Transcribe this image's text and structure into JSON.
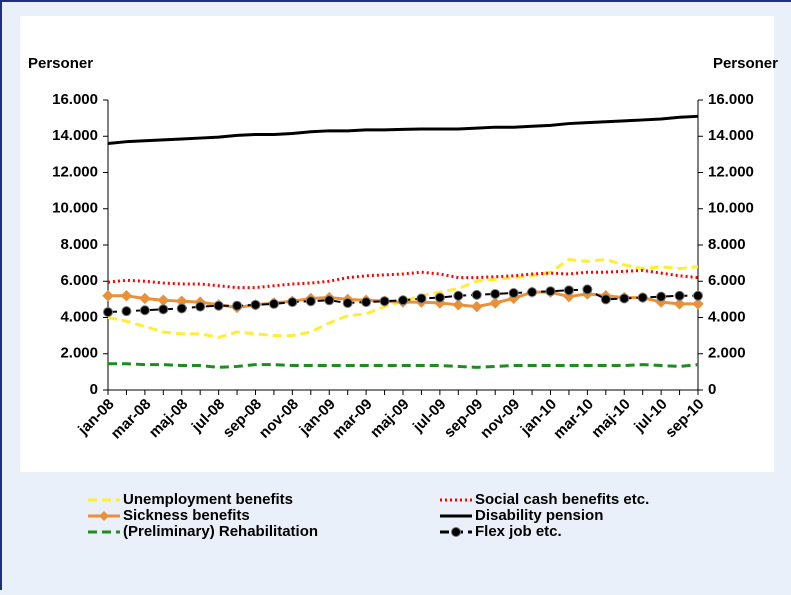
{
  "chart_data": {
    "type": "line",
    "y_label": "Personer",
    "y2_label": "Personer",
    "categories": [
      "jan-08",
      null,
      "mar-08",
      null,
      "maj-08",
      null,
      "jul-08",
      null,
      "sep-08",
      null,
      "nov-08",
      null,
      "jan-09",
      null,
      "mar-09",
      null,
      "maj-09",
      null,
      "jul-09",
      null,
      "sep-09",
      null,
      "nov-09",
      null,
      "jan-10",
      null,
      "mar-10",
      null,
      "maj-10",
      null,
      "jul-10",
      null,
      "sep-10"
    ],
    "ylim": [
      0,
      16000
    ],
    "yticks": [
      0,
      {
        "value": 2000,
        "label": "2.000"
      },
      {
        "value": 4000,
        "label": "4.000"
      },
      {
        "value": 6000,
        "label": "6.000"
      },
      {
        "value": 8000,
        "label": "8.000"
      },
      {
        "value": 10000,
        "label": "10.000"
      },
      {
        "value": 12000,
        "label": "12.000"
      },
      {
        "value": 14000,
        "label": "14.000"
      },
      {
        "value": 16000,
        "label": "16.000"
      }
    ],
    "y2lim": [
      0,
      16000
    ],
    "y2ticks": [
      0,
      {
        "value": 2000,
        "label": "2.000"
      },
      {
        "value": 4000,
        "label": "4.000"
      },
      {
        "value": 6000,
        "label": "6.000"
      },
      {
        "value": 8000,
        "label": "8.000"
      },
      {
        "value": 10000,
        "label": "10.000"
      },
      {
        "value": 12000,
        "label": "12.000"
      },
      {
        "value": 14000,
        "label": "14.000"
      },
      {
        "value": 16000,
        "label": "16.000"
      }
    ],
    "grid": false,
    "legend": "bottom",
    "series": [
      {
        "name": "Unemployment benefits",
        "color": "#ffee33",
        "style": "dashed",
        "marker": "none",
        "values": [
          4000,
          3800,
          3500,
          3200,
          3100,
          3100,
          2900,
          3200,
          3100,
          3000,
          3000,
          3200,
          3700,
          4100,
          4200,
          4600,
          4900,
          5200,
          5400,
          5600,
          6000,
          6100,
          6200,
          6300,
          6500,
          7200,
          7100,
          7200,
          6900,
          6700,
          6800,
          6700,
          6800
        ]
      },
      {
        "name": "Social cash benefits etc.",
        "color": "#ff0000",
        "style": "dotted",
        "marker": "none",
        "values": [
          5950,
          6050,
          6000,
          5900,
          5850,
          5850,
          5750,
          5650,
          5650,
          5750,
          5850,
          5900,
          6000,
          6200,
          6300,
          6350,
          6400,
          6500,
          6400,
          6200,
          6200,
          6250,
          6300,
          6400,
          6450,
          6400,
          6500,
          6500,
          6550,
          6600,
          6450,
          6300,
          6200
        ]
      },
      {
        "name": "Sickness benefits",
        "color": "#e8913a",
        "style": "solid",
        "marker": "diamond",
        "values": [
          5200,
          5200,
          5050,
          4950,
          4900,
          4850,
          4700,
          4550,
          4700,
          4800,
          4900,
          5050,
          5100,
          5000,
          4950,
          4900,
          4850,
          4850,
          4800,
          4700,
          4600,
          4800,
          5050,
          5400,
          5400,
          5150,
          5300,
          5200,
          5100,
          5100,
          4850,
          4750,
          4750
        ]
      },
      {
        "name": "Disability pension",
        "color": "#000000",
        "style": "solid",
        "marker": "none",
        "values": [
          13600,
          13700,
          13750,
          13800,
          13850,
          13900,
          13950,
          14050,
          14100,
          14100,
          14150,
          14250,
          14300,
          14300,
          14350,
          14350,
          14380,
          14400,
          14400,
          14400,
          14450,
          14500,
          14500,
          14550,
          14600,
          14700,
          14750,
          14800,
          14850,
          14900,
          14950,
          15050,
          15100
        ]
      },
      {
        "name": "(Preliminary) Rehabilitation",
        "color": "#1e8c1e",
        "style": "dashed",
        "marker": "none",
        "values": [
          1450,
          1450,
          1400,
          1400,
          1350,
          1350,
          1250,
          1300,
          1400,
          1400,
          1350,
          1350,
          1350,
          1350,
          1350,
          1350,
          1350,
          1350,
          1350,
          1300,
          1250,
          1300,
          1350,
          1350,
          1350,
          1350,
          1350,
          1350,
          1350,
          1400,
          1350,
          1300,
          1400
        ]
      },
      {
        "name": "Flex job etc.",
        "color": "#000000",
        "style": "dashed",
        "marker": "circle",
        "values": [
          4300,
          4350,
          4400,
          4450,
          4500,
          4600,
          4650,
          4650,
          4700,
          4750,
          4850,
          4900,
          4950,
          4800,
          4850,
          4900,
          4950,
          5050,
          5100,
          5200,
          5250,
          5300,
          5350,
          5400,
          5450,
          5500,
          5550,
          5000,
          5050,
          5100,
          5150,
          5200,
          5200
        ]
      }
    ]
  }
}
